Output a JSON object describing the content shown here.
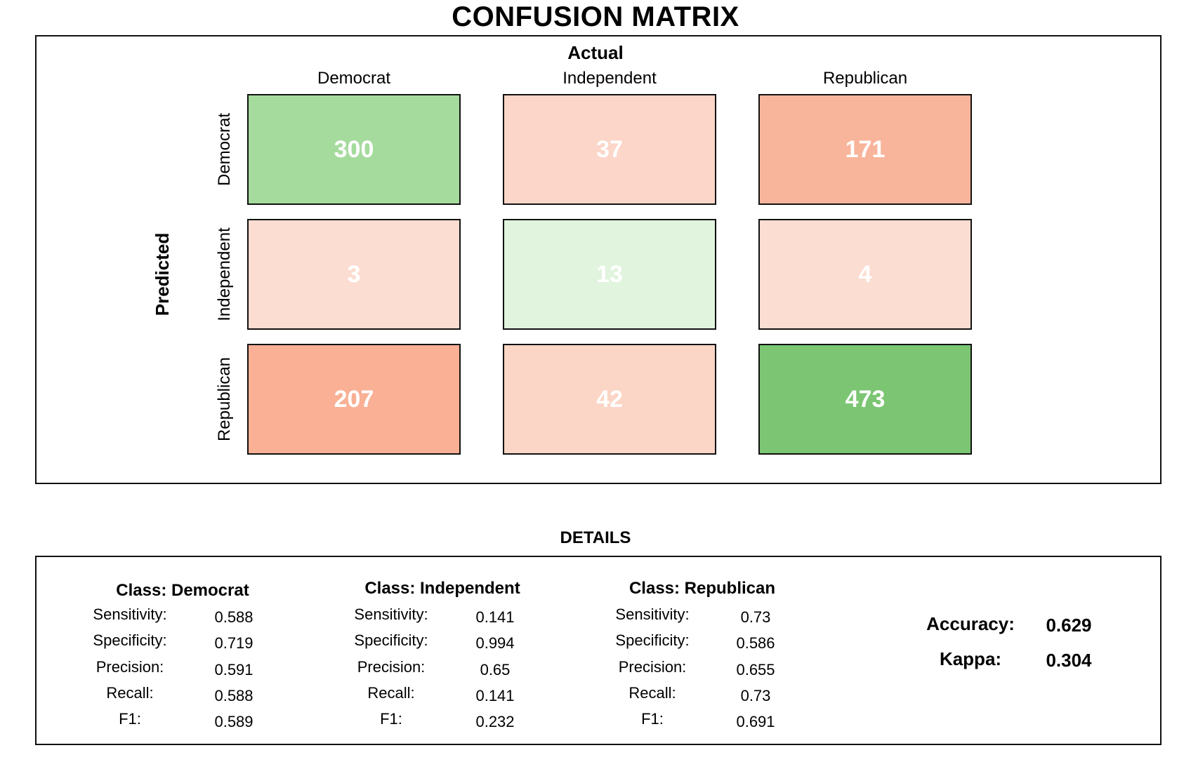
{
  "chart_data": {
    "type": "heatmap",
    "title": "CONFUSION MATRIX",
    "xlabel": "Actual",
    "ylabel": "Predicted",
    "columns": [
      "Democrat",
      "Independent",
      "Republican"
    ],
    "rows": [
      "Democrat",
      "Independent",
      "Republican"
    ],
    "values": [
      [
        300,
        37,
        171
      ],
      [
        3,
        13,
        4
      ],
      [
        207,
        42,
        473
      ]
    ],
    "colors": [
      [
        "#a6db9e",
        "#fcd6c8",
        "#f9b59b"
      ],
      [
        "#fcddd1",
        "#e1f4de",
        "#fcddd1"
      ],
      [
        "#f9b095",
        "#fbd5c5",
        "#7bc573"
      ]
    ]
  },
  "details": {
    "title": "DETAILS",
    "classes": [
      {
        "header": "Class: Democrat",
        "metrics": [
          {
            "name": "Sensitivity:",
            "value": "0.588"
          },
          {
            "name": "Specificity:",
            "value": "0.719"
          },
          {
            "name": "Precision:",
            "value": "0.591"
          },
          {
            "name": "Recall:",
            "value": "0.588"
          },
          {
            "name": "F1:",
            "value": "0.589"
          }
        ]
      },
      {
        "header": "Class: Independent",
        "metrics": [
          {
            "name": "Sensitivity:",
            "value": "0.141"
          },
          {
            "name": "Specificity:",
            "value": "0.994"
          },
          {
            "name": "Precision:",
            "value": "0.65"
          },
          {
            "name": "Recall:",
            "value": "0.141"
          },
          {
            "name": "F1:",
            "value": "0.232"
          }
        ]
      },
      {
        "header": "Class: Republican",
        "metrics": [
          {
            "name": "Sensitivity:",
            "value": "0.73"
          },
          {
            "name": "Specificity:",
            "value": "0.586"
          },
          {
            "name": "Precision:",
            "value": "0.655"
          },
          {
            "name": "Recall:",
            "value": "0.73"
          },
          {
            "name": "F1:",
            "value": "0.691"
          }
        ]
      }
    ],
    "overall": {
      "accuracy_label": "Accuracy:",
      "accuracy_value": "0.629",
      "kappa_label": "Kappa:",
      "kappa_value": "0.304"
    }
  }
}
